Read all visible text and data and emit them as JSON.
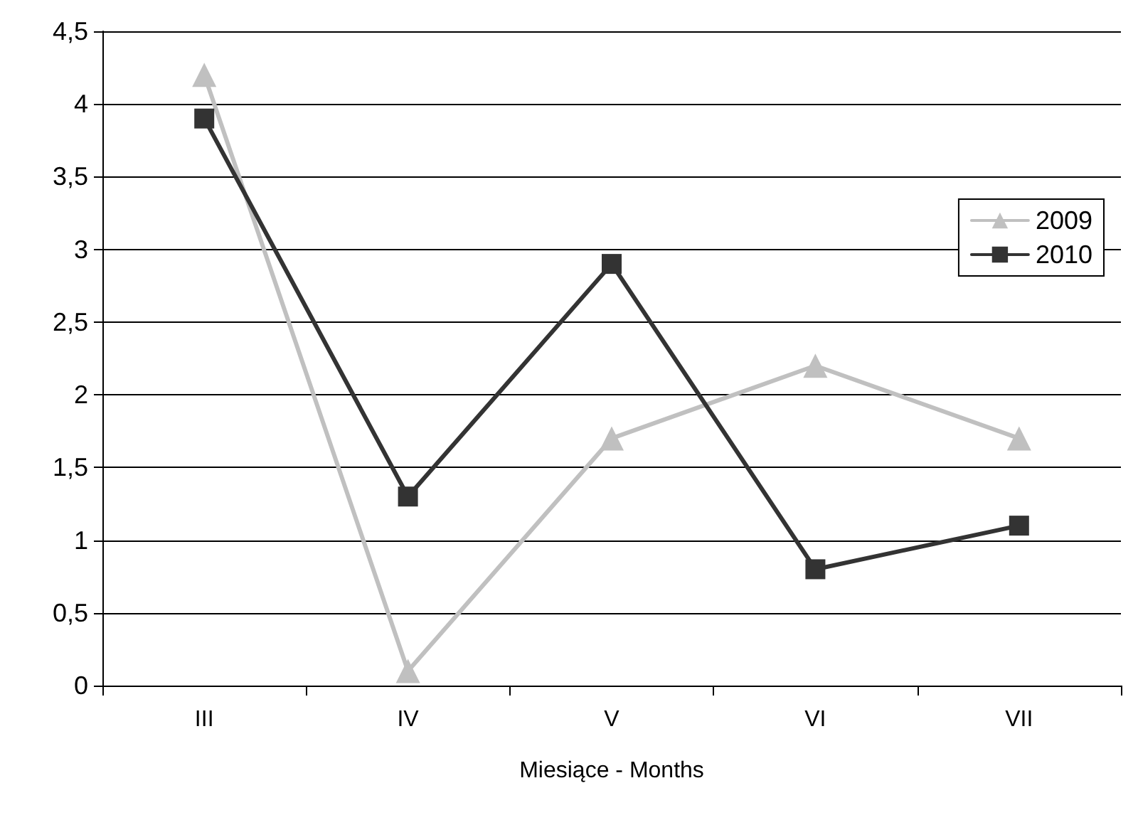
{
  "chart_data": {
    "type": "line",
    "xlabel": "Miesiące - Months",
    "categories": [
      "III",
      "IV",
      "V",
      "VI",
      "VII"
    ],
    "series": [
      {
        "name": "2009",
        "color": "#c0c0c0",
        "marker": "triangle",
        "values": [
          4.2,
          0.1,
          1.7,
          2.2,
          1.7
        ]
      },
      {
        "name": "2010",
        "color": "#333333",
        "marker": "square",
        "values": [
          3.9,
          1.3,
          2.9,
          0.8,
          1.1
        ]
      }
    ],
    "ylim": [
      0,
      4.5
    ],
    "yticks": [
      0,
      {
        "value": 0.5,
        "label": "0,5"
      },
      1,
      {
        "value": 1.5,
        "label": "1,5"
      },
      2,
      {
        "value": 2.5,
        "label": "2,5"
      },
      3,
      {
        "value": 3.5,
        "label": "3,5"
      },
      4,
      {
        "value": 4.5,
        "label": "4,5"
      }
    ],
    "grid": "y",
    "legend": "top right"
  }
}
